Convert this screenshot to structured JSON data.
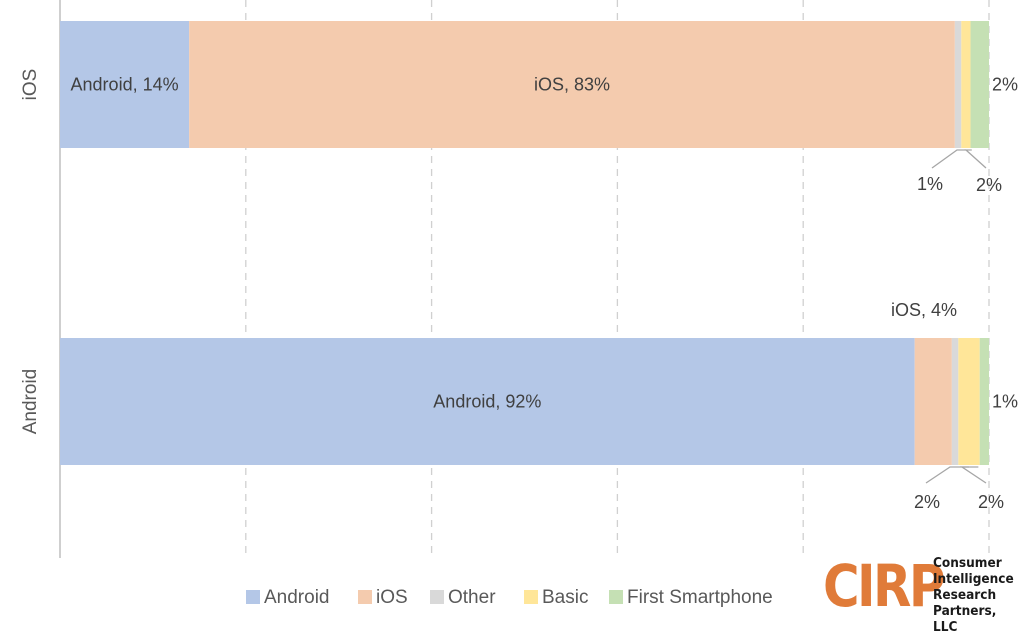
{
  "chart_data": {
    "type": "bar",
    "orientation": "horizontal",
    "stacked": "100%",
    "categories": [
      "iOS",
      "Android"
    ],
    "series": [
      {
        "name": "Android",
        "color": "#b4c7e7",
        "values": [
          14,
          92
        ]
      },
      {
        "name": "iOS",
        "color": "#f4cbae",
        "values": [
          83,
          4
        ]
      },
      {
        "name": "Other",
        "color": "#d9d9d9",
        "values": [
          0.7,
          0.7
        ]
      },
      {
        "name": "Basic",
        "color": "#ffe699",
        "values": [
          1,
          2.3
        ]
      },
      {
        "name": "First Smartphone",
        "color": "#c5e0b4",
        "values": [
          2,
          1
        ]
      }
    ],
    "data_labels": [
      [
        "Android, 14%",
        "iOS, 83%",
        "",
        "1%",
        "2%"
      ],
      [
        "Android, 92%",
        "iOS, 4%",
        "",
        "2%",
        "1%"
      ]
    ],
    "xlim": [
      0,
      100
    ],
    "grid": true,
    "legend_position": "bottom"
  },
  "logo": {
    "mark": "CIRP",
    "lines": [
      "Consumer",
      "Intelligence",
      "Research",
      "Partners, LLC"
    ]
  }
}
